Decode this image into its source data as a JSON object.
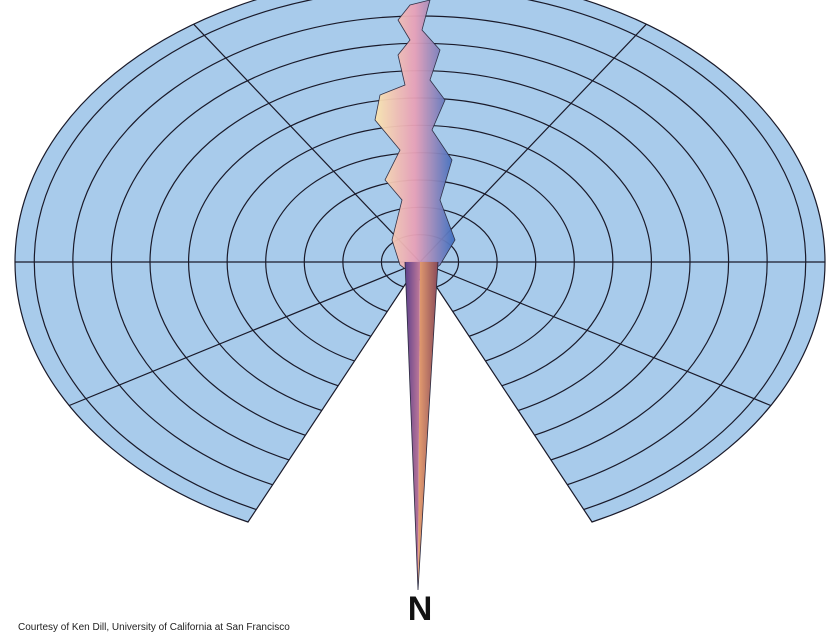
{
  "label": "N",
  "caption": "Courtesy of Ken Dill, University of California at San Francisco"
}
